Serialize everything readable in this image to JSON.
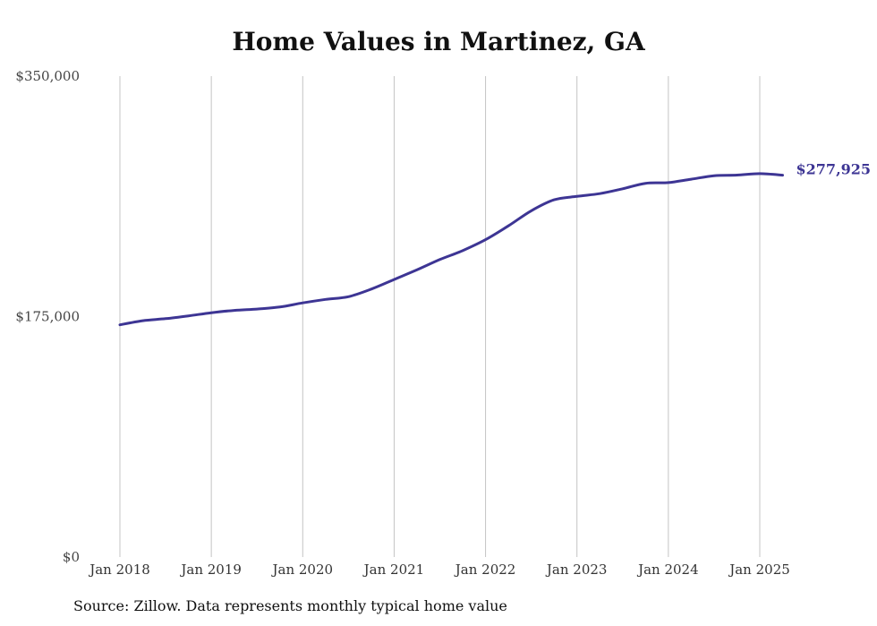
{
  "chart_data": {
    "type": "line",
    "title": "Home Values in Martinez, GA",
    "xlabel": "",
    "ylabel": "",
    "ylim": [
      0,
      350000
    ],
    "y_ticks": [
      0,
      175000,
      350000
    ],
    "y_tick_labels": [
      "$0",
      "$175,000",
      "$350,000"
    ],
    "x_ticks": [
      "2018-01",
      "2019-01",
      "2020-01",
      "2021-01",
      "2022-01",
      "2023-01",
      "2024-01",
      "2025-01"
    ],
    "x_tick_labels": [
      "Jan 2018",
      "Jan 2019",
      "Jan 2020",
      "Jan 2021",
      "Jan 2022",
      "Jan 2023",
      "Jan 2024",
      "Jan 2025"
    ],
    "x_range": [
      "2018-01",
      "2025-04"
    ],
    "grid": "vertical",
    "legend": "none",
    "series": [
      {
        "color": "#3d3594",
        "end_label": "$277,925",
        "points": [
          [
            "2018-01",
            169000
          ],
          [
            "2018-04",
            172000
          ],
          [
            "2018-07",
            173500
          ],
          [
            "2018-10",
            175500
          ],
          [
            "2019-01",
            177800
          ],
          [
            "2019-04",
            179500
          ],
          [
            "2019-07",
            180500
          ],
          [
            "2019-10",
            182000
          ],
          [
            "2020-01",
            185000
          ],
          [
            "2020-04",
            187500
          ],
          [
            "2020-07",
            189500
          ],
          [
            "2020-10",
            195000
          ],
          [
            "2021-01",
            202000
          ],
          [
            "2021-04",
            209000
          ],
          [
            "2021-07",
            216500
          ],
          [
            "2021-10",
            223000
          ],
          [
            "2022-01",
            231000
          ],
          [
            "2022-04",
            241000
          ],
          [
            "2022-07",
            252000
          ],
          [
            "2022-10",
            260000
          ],
          [
            "2023-01",
            262500
          ],
          [
            "2023-04",
            264500
          ],
          [
            "2023-07",
            268000
          ],
          [
            "2023-10",
            272000
          ],
          [
            "2024-01",
            272500
          ],
          [
            "2024-04",
            275000
          ],
          [
            "2024-07",
            277500
          ],
          [
            "2024-10",
            278000
          ],
          [
            "2025-01",
            279000
          ],
          [
            "2025-04",
            277925
          ]
        ]
      }
    ]
  },
  "source": "Source: Zillow. Data represents monthly typical home value"
}
